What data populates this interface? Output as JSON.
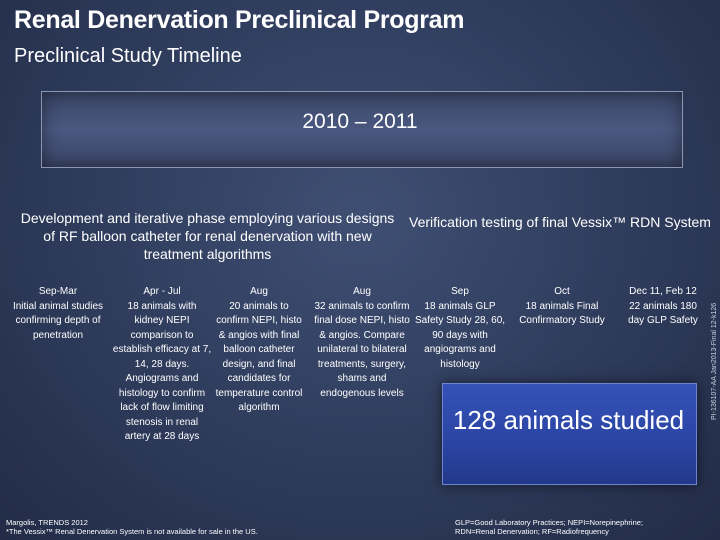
{
  "header": {
    "title": "Renal Denervation Preclinical Program",
    "subtitle": "Preclinical Study Timeline"
  },
  "banner": {
    "years": "2010 – 2011"
  },
  "phases": {
    "development": "Development and iterative phase employing various designs of RF balloon catheter for renal denervation with new treatment algorithms",
    "verification": "Verification testing of final Vessix™ RDN System"
  },
  "timeline": [
    {
      "period": "Sep-Mar",
      "text": "Initial animal studies confirming depth of penetration"
    },
    {
      "period": "Apr - Jul",
      "text": "18 animals with kidney NEPI comparison to establish efficacy at 7, 14, 28 days. Angiograms and histology to confirm lack of flow limiting stenosis in renal artery at 28 days"
    },
    {
      "period": "Aug",
      "text": "20 animals to confirm NEPI, histo & angios with final balloon catheter design, and final candidates for temperature control algorithm"
    },
    {
      "period": "Aug",
      "text": "32 animals to confirm final dose NEPI, histo & angios. Compare unilateral to bilateral treatments, surgery, shams and endogenous levels"
    },
    {
      "period": "Sep",
      "text": "18 animals GLP Safety Study 28, 60, 90 days with angiograms and histology"
    },
    {
      "period": "Oct",
      "text": "18 animals Final Confirmatory Study"
    },
    {
      "period": "Dec 11, Feb 12",
      "text": "22 animals 180 day GLP Safety"
    }
  ],
  "summary": {
    "text": "128 animals studied"
  },
  "side_code": "PI-136107-AA Jan2013-Final 12-k126",
  "footer": {
    "left_line1": "Margolis, TRENDS 2012",
    "left_line2": "*The Vessix™ Renal Denervation System is not available for sale in the US.",
    "right_line1": "GLP=Good Laboratory Practices; NEPI=Norepinephrine;",
    "right_line2": "RDN=Renal Denervation; RF=Radiofrequency"
  }
}
